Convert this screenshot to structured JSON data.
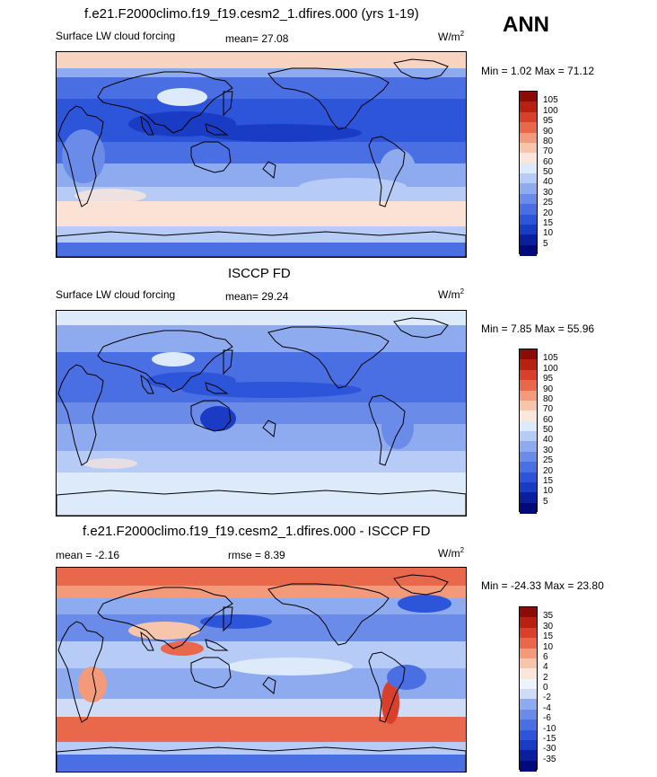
{
  "header": {
    "annual_label": "ANN"
  },
  "panels": [
    {
      "title": "f.e21.F2000climo.f19_f19.cesm2_1.dfires.000 (yrs 1-19)",
      "field_label": "Surface LW cloud forcing",
      "mean_label": "mean=",
      "mean_value": "27.08",
      "units": "W/m",
      "units_sup": "2",
      "min_max": "Min =   1.02 Max =  71.12",
      "levels": [
        "5",
        "10",
        "15",
        "20",
        "25",
        "30",
        "40",
        "50",
        "60",
        "70",
        "80",
        "90",
        "95",
        "100",
        "105"
      ],
      "colors": [
        "#000a7a",
        "#0a1f9e",
        "#1a3cc4",
        "#2d55da",
        "#4a6fe3",
        "#6a8be8",
        "#8fabef",
        "#b6cbf5",
        "#ddeafa",
        "#fbe6dc",
        "#f7c5ab",
        "#f29a7a",
        "#e9674b",
        "#d8402b",
        "#b8200f",
        "#8c0c05"
      ],
      "scheme": "model"
    },
    {
      "title": "ISCCP FD",
      "field_label": "Surface LW cloud forcing",
      "mean_label": "mean=",
      "mean_value": "29.24",
      "units": "W/m",
      "units_sup": "2",
      "min_max": "Min =   7.85 Max =  55.96",
      "levels": [
        "5",
        "10",
        "15",
        "20",
        "25",
        "30",
        "40",
        "50",
        "60",
        "70",
        "80",
        "90",
        "95",
        "100",
        "105"
      ],
      "colors": [
        "#000a7a",
        "#0a1f9e",
        "#1a3cc4",
        "#2d55da",
        "#4a6fe3",
        "#6a8be8",
        "#8fabef",
        "#b6cbf5",
        "#ddeafa",
        "#fbe6dc",
        "#f7c5ab",
        "#f29a7a",
        "#e9674b",
        "#d8402b",
        "#b8200f",
        "#8c0c05"
      ],
      "scheme": "obs"
    },
    {
      "title": "f.e21.F2000climo.f19_f19.cesm2_1.dfires.000 - ISCCP FD",
      "field_label": "mean =  -2.16",
      "mean_label": "rmse =",
      "mean_value": "8.39",
      "units": "W/m",
      "units_sup": "2",
      "min_max": "Min = -24.33 Max =  23.80",
      "levels": [
        "-35",
        "-30",
        "-15",
        "-10",
        "-6",
        "-4",
        "-2",
        "0",
        "2",
        "4",
        "6",
        "10",
        "15",
        "30",
        "35"
      ],
      "colors": [
        "#000a7a",
        "#0a1f9e",
        "#1a3cc4",
        "#2d55da",
        "#4a6fe3",
        "#6a8be8",
        "#8fabef",
        "#cfdcf7",
        "#eef3fc",
        "#fbe6dc",
        "#f7c5ab",
        "#f29a7a",
        "#e9674b",
        "#d8402b",
        "#b8200f",
        "#8c0c05"
      ],
      "scheme": "diff"
    }
  ]
}
